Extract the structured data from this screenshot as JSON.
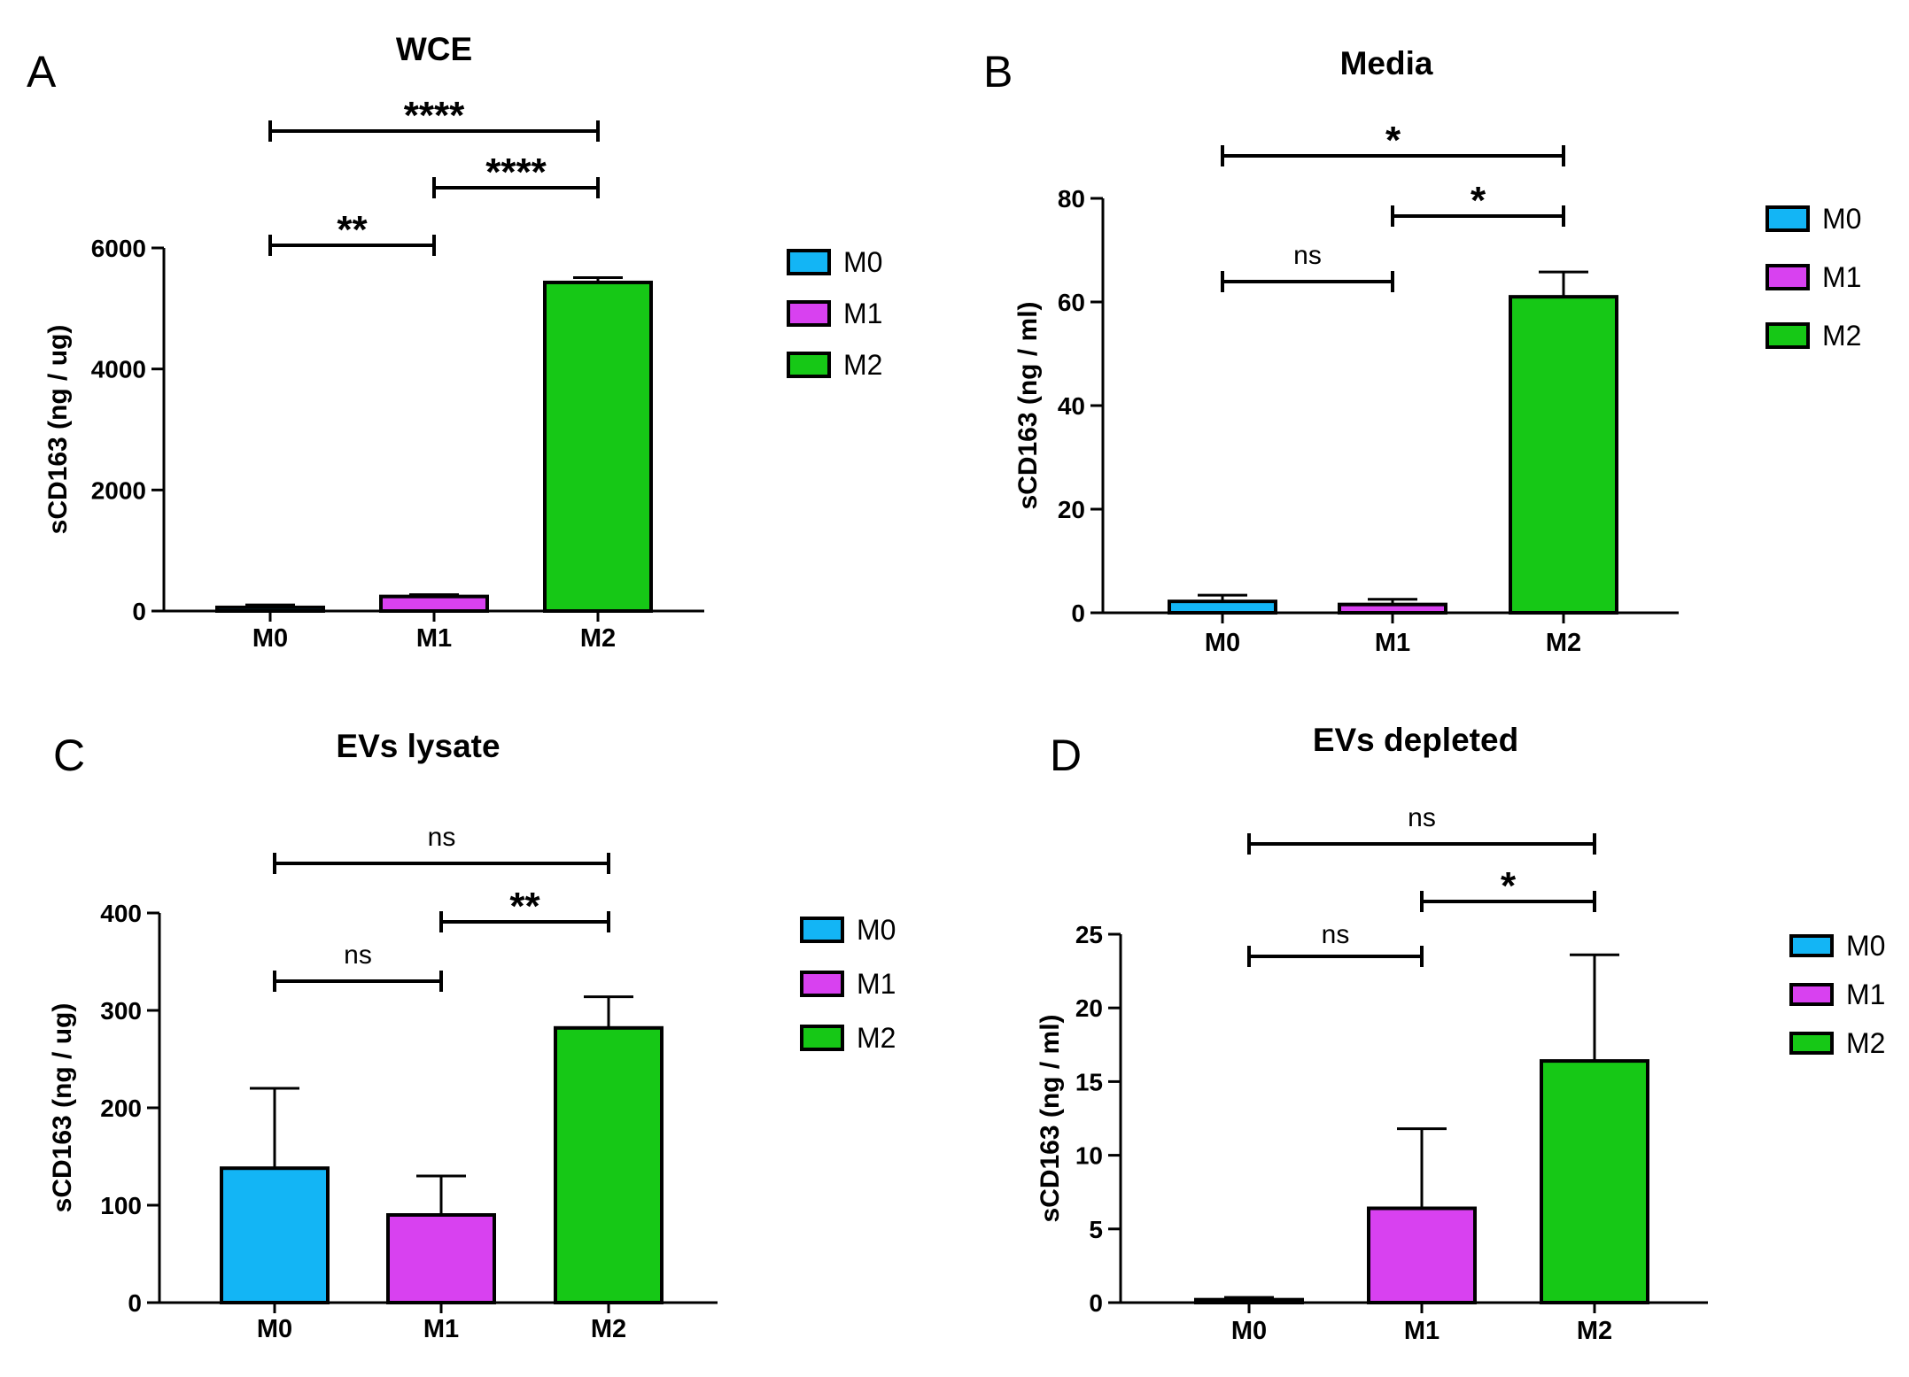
{
  "chart_data": [
    {
      "panel": "A",
      "type": "bar",
      "title": "WCE",
      "ylabel": "sCD163 (ng / ug)",
      "xlabel": "",
      "categories": [
        "M0",
        "M1",
        "M2"
      ],
      "values": [
        60,
        240,
        5430
      ],
      "errors": [
        40,
        30,
        80
      ],
      "colors": [
        "#13b5f5",
        "#d841f0",
        "#16c816"
      ],
      "ylim": [
        0,
        6000
      ],
      "yticks": [
        0,
        2000,
        4000,
        6000
      ],
      "legend": [
        "M0",
        "M1",
        "M2"
      ],
      "legend_position": "right",
      "grid": false,
      "significance": [
        {
          "from": "M0",
          "to": "M1",
          "label": "**"
        },
        {
          "from": "M1",
          "to": "M2",
          "label": "****"
        },
        {
          "from": "M0",
          "to": "M2",
          "label": "****"
        }
      ]
    },
    {
      "panel": "B",
      "type": "bar",
      "title": "Media",
      "ylabel": "sCD163 (ng / ml)",
      "xlabel": "",
      "categories": [
        "M0",
        "M1",
        "M2"
      ],
      "values": [
        2.2,
        1.6,
        61
      ],
      "errors": [
        1.2,
        1.0,
        4.8
      ],
      "colors": [
        "#13b5f5",
        "#d841f0",
        "#16c816"
      ],
      "ylim": [
        0,
        80
      ],
      "yticks": [
        0,
        20,
        40,
        60,
        80
      ],
      "legend": [
        "M0",
        "M1",
        "M2"
      ],
      "legend_position": "right",
      "grid": false,
      "significance": [
        {
          "from": "M0",
          "to": "M1",
          "label": "ns"
        },
        {
          "from": "M1",
          "to": "M2",
          "label": "*"
        },
        {
          "from": "M0",
          "to": "M2",
          "label": "*"
        }
      ]
    },
    {
      "panel": "C",
      "type": "bar",
      "title": "EVs lysate",
      "ylabel": "sCD163 (ng / ug)",
      "xlabel": "",
      "categories": [
        "M0",
        "M1",
        "M2"
      ],
      "values": [
        138,
        90,
        282
      ],
      "errors": [
        82,
        40,
        32
      ],
      "colors": [
        "#13b5f5",
        "#d841f0",
        "#16c816"
      ],
      "ylim": [
        0,
        400
      ],
      "yticks": [
        0,
        100,
        200,
        300,
        400
      ],
      "legend": [
        "M0",
        "M1",
        "M2"
      ],
      "legend_position": "right",
      "grid": false,
      "significance": [
        {
          "from": "M0",
          "to": "M1",
          "label": "ns"
        },
        {
          "from": "M1",
          "to": "M2",
          "label": "**"
        },
        {
          "from": "M0",
          "to": "M2",
          "label": "ns"
        }
      ]
    },
    {
      "panel": "D",
      "type": "bar",
      "title": "EVs depleted",
      "ylabel": "sCD163 (ng / ml)",
      "xlabel": "",
      "categories": [
        "M0",
        "M1",
        "M2"
      ],
      "values": [
        0.2,
        6.4,
        16.4
      ],
      "errors": [
        0.15,
        5.4,
        7.2
      ],
      "colors": [
        "#13b5f5",
        "#d841f0",
        "#16c816"
      ],
      "ylim": [
        0,
        25
      ],
      "yticks": [
        0,
        5,
        10,
        15,
        20,
        25
      ],
      "legend": [
        "M0",
        "M1",
        "M2"
      ],
      "legend_position": "right",
      "grid": false,
      "significance": [
        {
          "from": "M0",
          "to": "M1",
          "label": "ns"
        },
        {
          "from": "M1",
          "to": "M2",
          "label": "*"
        },
        {
          "from": "M0",
          "to": "M2",
          "label": "ns"
        }
      ]
    }
  ]
}
